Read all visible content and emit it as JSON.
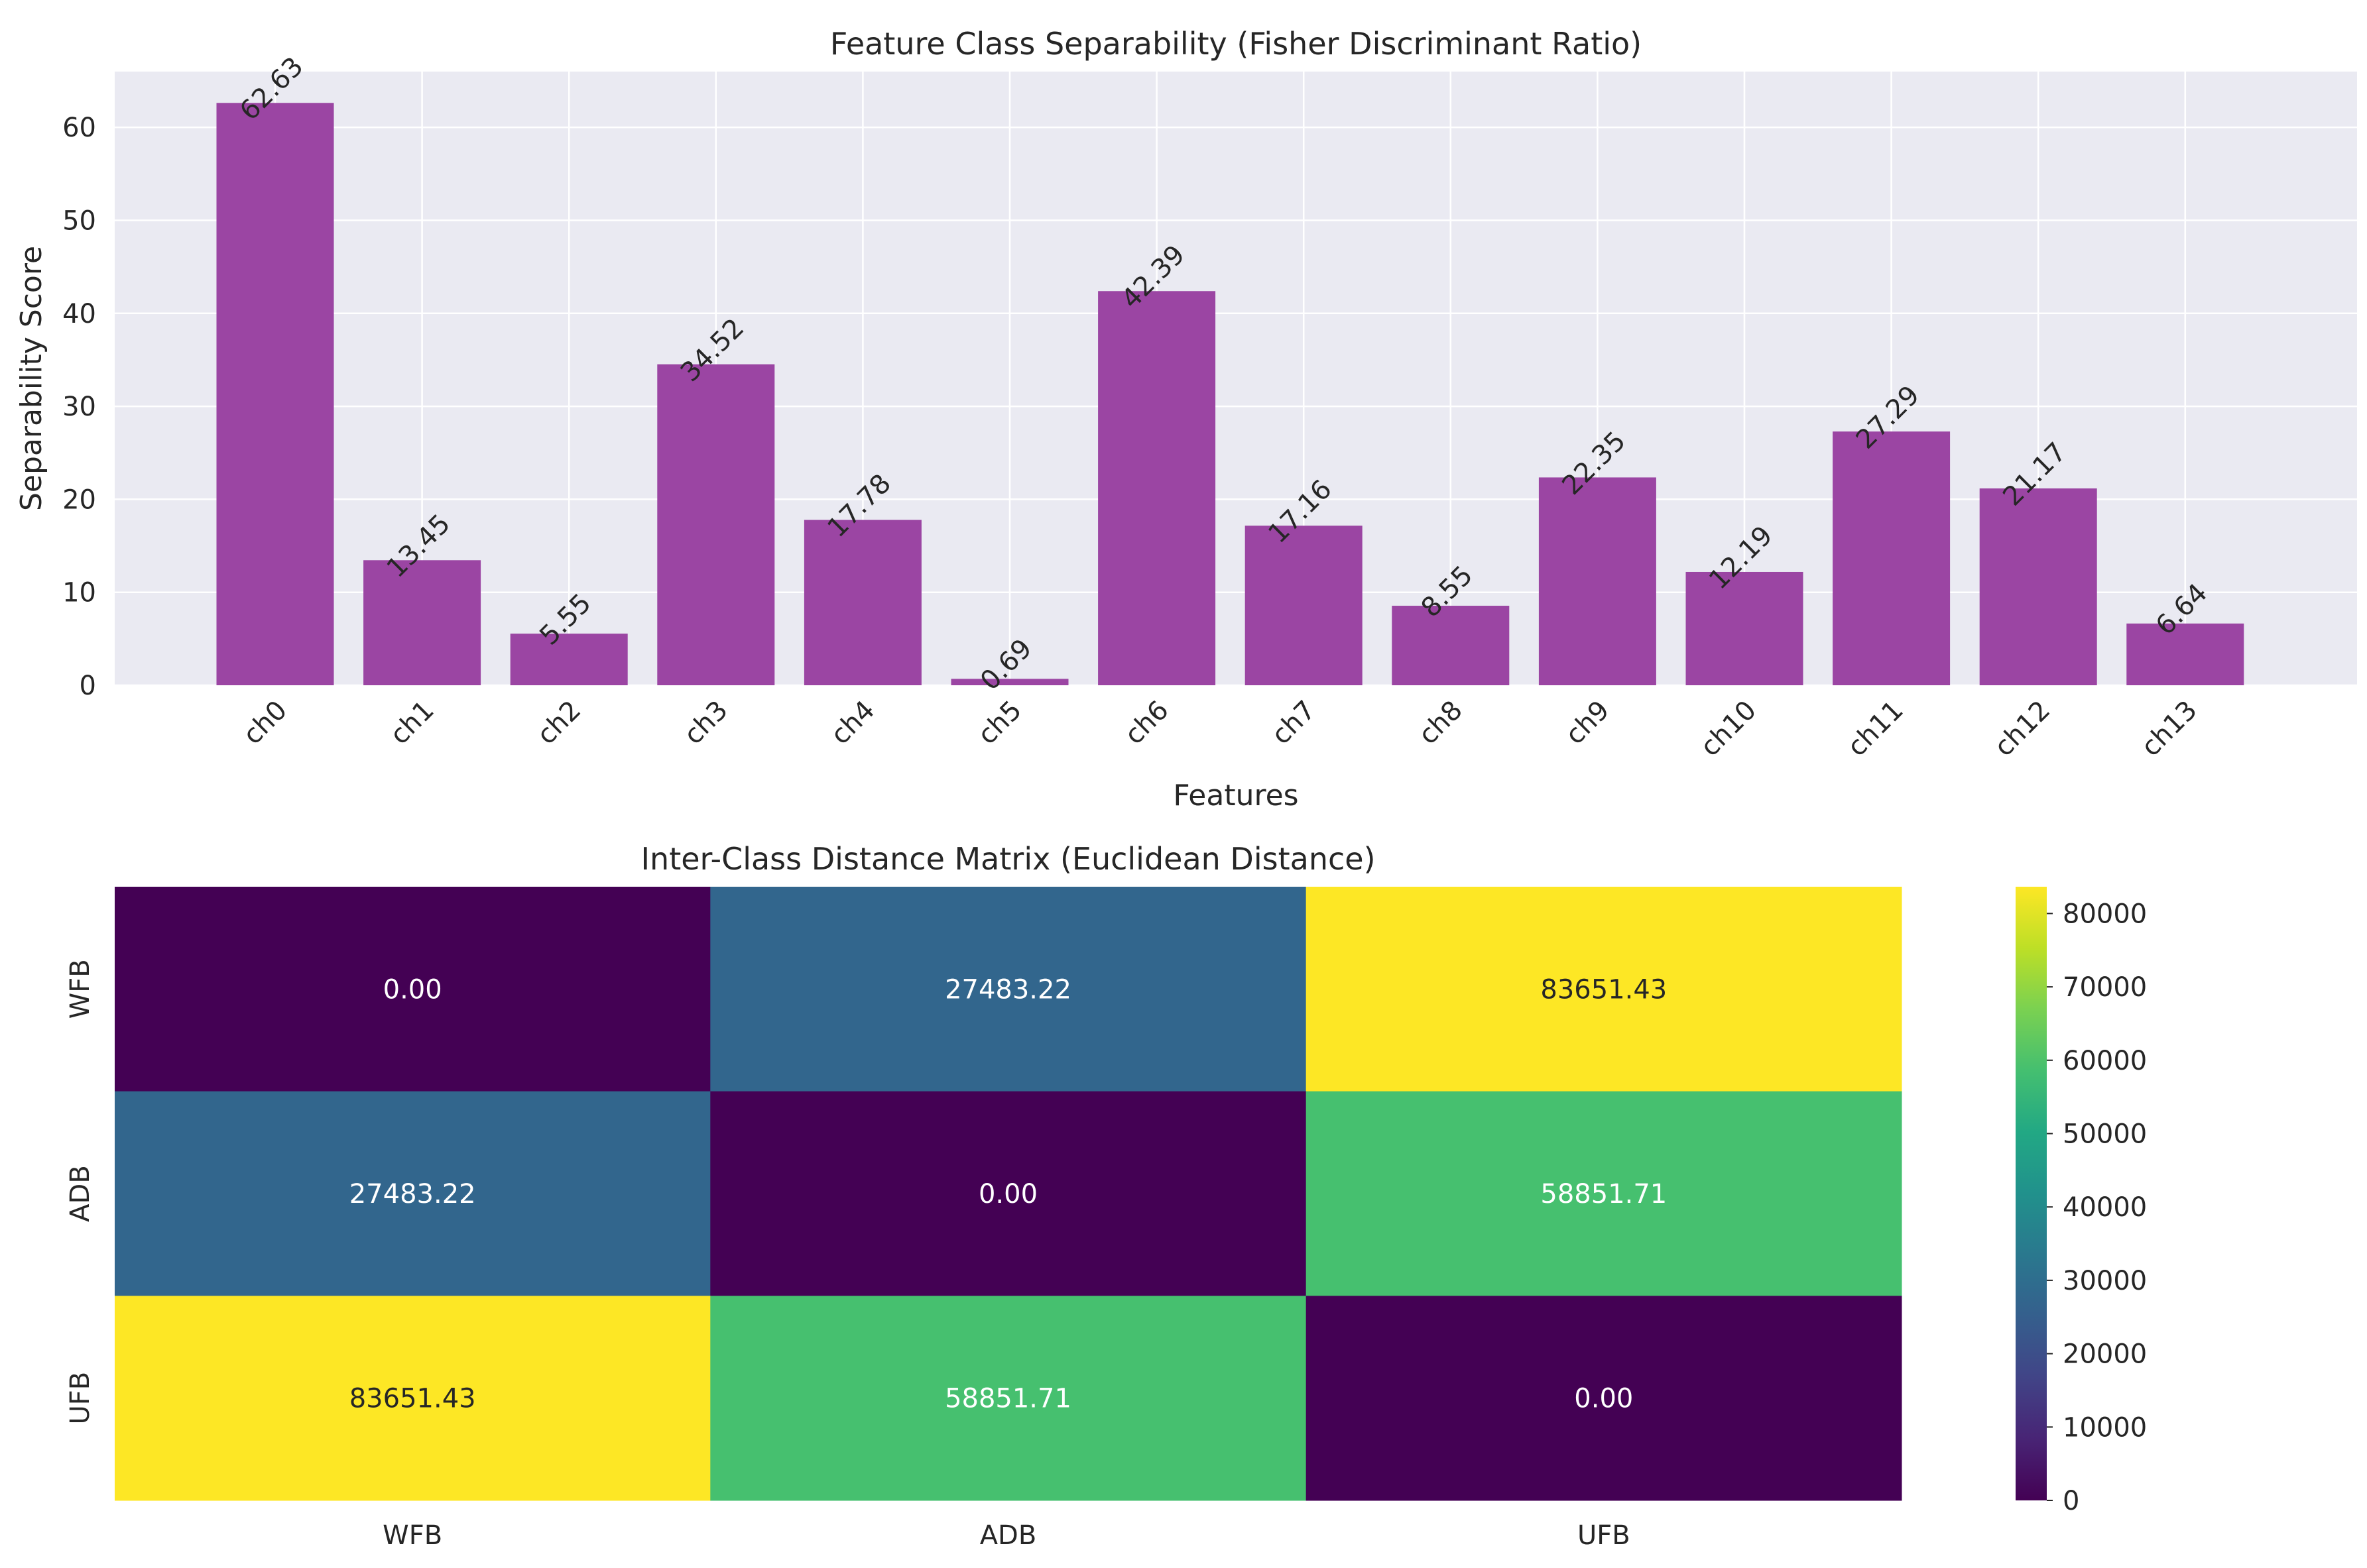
{
  "chart_data": [
    {
      "type": "bar",
      "title": "Feature Class Separability (Fisher Discriminant Ratio)",
      "xlabel": "Features",
      "ylabel": "Separability Score",
      "categories": [
        "ch0",
        "ch1",
        "ch2",
        "ch3",
        "ch4",
        "ch5",
        "ch6",
        "ch7",
        "ch8",
        "ch9",
        "ch10",
        "ch11",
        "ch12",
        "ch13"
      ],
      "values": [
        62.63,
        13.45,
        5.55,
        34.52,
        17.78,
        0.69,
        42.39,
        17.16,
        8.55,
        22.35,
        12.19,
        27.29,
        21.17,
        6.64
      ],
      "value_labels": [
        "62.63",
        "13.45",
        "5.55",
        "34.52",
        "17.78",
        "0.69",
        "42.39",
        "17.16",
        "8.55",
        "22.35",
        "12.19",
        "27.29",
        "21.17",
        "6.64"
      ],
      "ylim": [
        0,
        66
      ],
      "yticks": [
        0,
        10,
        20,
        30,
        40,
        50,
        60
      ],
      "bar_color": "#9b45a3",
      "grid": true,
      "background": "#eaeaf2"
    },
    {
      "type": "heatmap",
      "title": "Inter-Class Distance Matrix (Euclidean Distance)",
      "row_labels": [
        "WFB",
        "ADB",
        "UFB"
      ],
      "col_labels": [
        "WFB",
        "ADB",
        "UFB"
      ],
      "values": [
        [
          0.0,
          27483.22,
          83651.43
        ],
        [
          27483.22,
          0.0,
          58851.71
        ],
        [
          83651.43,
          58851.71,
          0.0
        ]
      ],
      "cell_labels": [
        [
          "0.00",
          "27483.22",
          "83651.43"
        ],
        [
          "27483.22",
          "0.00",
          "58851.71"
        ],
        [
          "83651.43",
          "58851.71",
          "0.00"
        ]
      ],
      "colormap": "viridis",
      "vmin": 0,
      "vmax": 83651.43,
      "colorbar_ticks": [
        0,
        10000,
        20000,
        30000,
        40000,
        50000,
        60000,
        70000,
        80000
      ]
    }
  ]
}
